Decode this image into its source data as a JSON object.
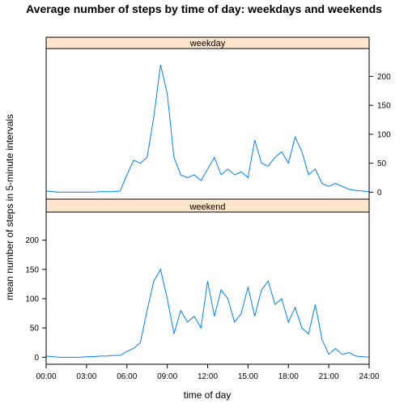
{
  "chart_data": {
    "type": "line",
    "title": "Average number of steps by time of day: weekdays and weekends",
    "xlabel": "time of day",
    "ylabel": "mean number of steps in 5-minute intervals",
    "x": [
      0,
      0.5,
      1,
      1.5,
      2,
      2.5,
      3,
      3.5,
      4,
      4.5,
      5,
      5.5,
      6,
      6.5,
      7,
      7.5,
      8,
      8.5,
      9,
      9.5,
      10,
      10.5,
      11,
      11.5,
      12,
      12.5,
      13,
      13.5,
      14,
      14.5,
      15,
      15.5,
      16,
      16.5,
      17,
      17.5,
      18,
      18.5,
      19,
      19.5,
      20,
      20.5,
      21,
      21.5,
      22,
      22.5,
      23,
      23.5,
      24
    ],
    "xlim": [
      0,
      24
    ],
    "xticks": [
      {
        "value": 0,
        "label": "00:00"
      },
      {
        "value": 3,
        "label": "03:00"
      },
      {
        "value": 6,
        "label": "06:00"
      },
      {
        "value": 9,
        "label": "09:00"
      },
      {
        "value": 12,
        "label": "12:00"
      },
      {
        "value": 15,
        "label": "15:00"
      },
      {
        "value": 18,
        "label": "18:00"
      },
      {
        "value": 21,
        "label": "21:00"
      },
      {
        "value": 24,
        "label": "24:00"
      }
    ],
    "ylim": [
      -12,
      248
    ],
    "yticks": [
      0,
      50,
      100,
      150,
      200
    ],
    "series": [
      {
        "name": "weekday",
        "color": "#0080ff",
        "values": [
          2,
          1,
          0,
          0,
          0,
          0,
          0,
          0,
          1,
          1,
          1,
          2,
          30,
          55,
          50,
          60,
          130,
          220,
          170,
          60,
          30,
          25,
          30,
          20,
          40,
          60,
          30,
          40,
          30,
          35,
          25,
          90,
          50,
          45,
          60,
          70,
          50,
          95,
          70,
          30,
          40,
          15,
          10,
          15,
          10,
          5,
          3,
          2,
          1
        ]
      },
      {
        "name": "weekend",
        "color": "#0080ff",
        "values": [
          2,
          1,
          0,
          0,
          0,
          0,
          1,
          1,
          2,
          2,
          3,
          3,
          10,
          15,
          25,
          80,
          130,
          150,
          100,
          40,
          80,
          60,
          70,
          50,
          130,
          70,
          115,
          100,
          60,
          75,
          120,
          70,
          115,
          130,
          90,
          100,
          60,
          85,
          50,
          40,
          90,
          30,
          5,
          15,
          5,
          8,
          2,
          1,
          0
        ]
      }
    ]
  }
}
